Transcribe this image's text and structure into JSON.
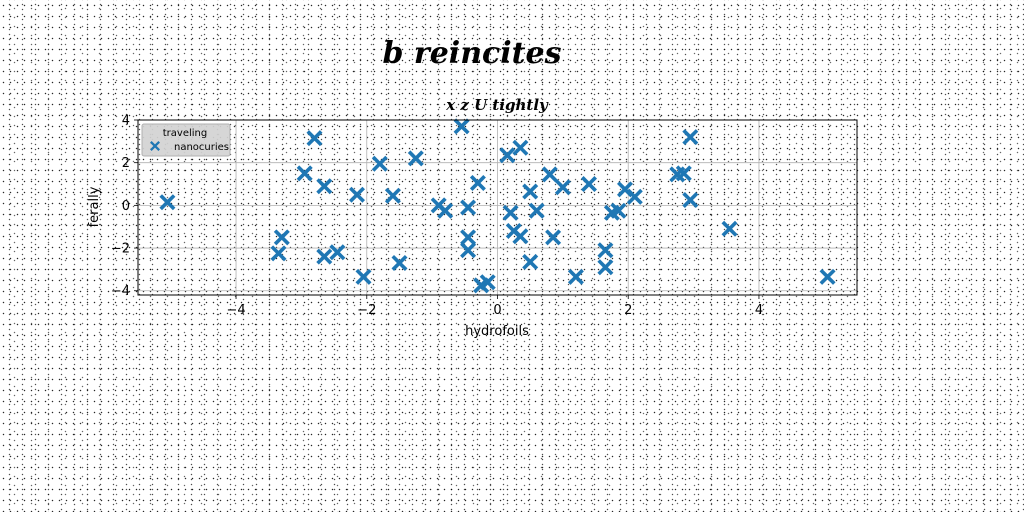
{
  "chart_data": {
    "type": "scatter",
    "title": "b reincites",
    "subtitle": "x z U tightly",
    "xlabel": "hydrofoils",
    "ylabel": "ferally",
    "xlim": [
      -5.5,
      5.5
    ],
    "ylim": [
      -4.2,
      4.0
    ],
    "xticks": [
      -4,
      -2,
      0,
      2,
      4
    ],
    "yticks": [
      -4,
      -2,
      0,
      2,
      4
    ],
    "xtick_labels": [
      "−4",
      "−2",
      "0",
      "2",
      "4"
    ],
    "ytick_labels": [
      "−4",
      "−2",
      "0",
      "2",
      "4"
    ],
    "grid": true,
    "legend": {
      "title": "traveling",
      "position": "upper-left"
    },
    "marker": "X",
    "series": [
      {
        "name": "nanocuries",
        "color": "#1f77b4",
        "points": [
          [
            -5.05,
            0.15
          ],
          [
            -3.3,
            -1.5
          ],
          [
            -3.35,
            -2.25
          ],
          [
            -2.8,
            3.15
          ],
          [
            -2.95,
            1.5
          ],
          [
            -2.65,
            0.9
          ],
          [
            -2.65,
            -2.4
          ],
          [
            -2.45,
            -2.2
          ],
          [
            -2.15,
            0.5
          ],
          [
            -2.05,
            -3.35
          ],
          [
            -1.8,
            1.95
          ],
          [
            -1.6,
            0.45
          ],
          [
            -1.5,
            -2.7
          ],
          [
            -1.25,
            2.2
          ],
          [
            -0.9,
            0.0
          ],
          [
            -0.8,
            -0.25
          ],
          [
            -0.55,
            3.7
          ],
          [
            -0.45,
            -0.1
          ],
          [
            -0.45,
            -1.5
          ],
          [
            -0.45,
            -2.1
          ],
          [
            -0.3,
            1.05
          ],
          [
            -0.25,
            -3.75
          ],
          [
            -0.15,
            -3.6
          ],
          [
            0.15,
            2.35
          ],
          [
            0.2,
            -0.35
          ],
          [
            0.25,
            -1.2
          ],
          [
            0.35,
            2.7
          ],
          [
            0.35,
            -1.45
          ],
          [
            0.5,
            0.65
          ],
          [
            0.5,
            -2.65
          ],
          [
            0.6,
            -0.25
          ],
          [
            0.8,
            1.45
          ],
          [
            0.85,
            -1.5
          ],
          [
            1.0,
            0.85
          ],
          [
            1.2,
            -3.35
          ],
          [
            1.4,
            1.0
          ],
          [
            1.65,
            -2.1
          ],
          [
            1.65,
            -2.9
          ],
          [
            1.75,
            -0.35
          ],
          [
            1.85,
            -0.25
          ],
          [
            1.95,
            0.75
          ],
          [
            2.1,
            0.4
          ],
          [
            2.75,
            1.45
          ],
          [
            2.85,
            1.5
          ],
          [
            2.95,
            3.2
          ],
          [
            2.95,
            0.25
          ],
          [
            3.55,
            -1.1
          ],
          [
            5.05,
            -3.35
          ]
        ]
      }
    ]
  }
}
